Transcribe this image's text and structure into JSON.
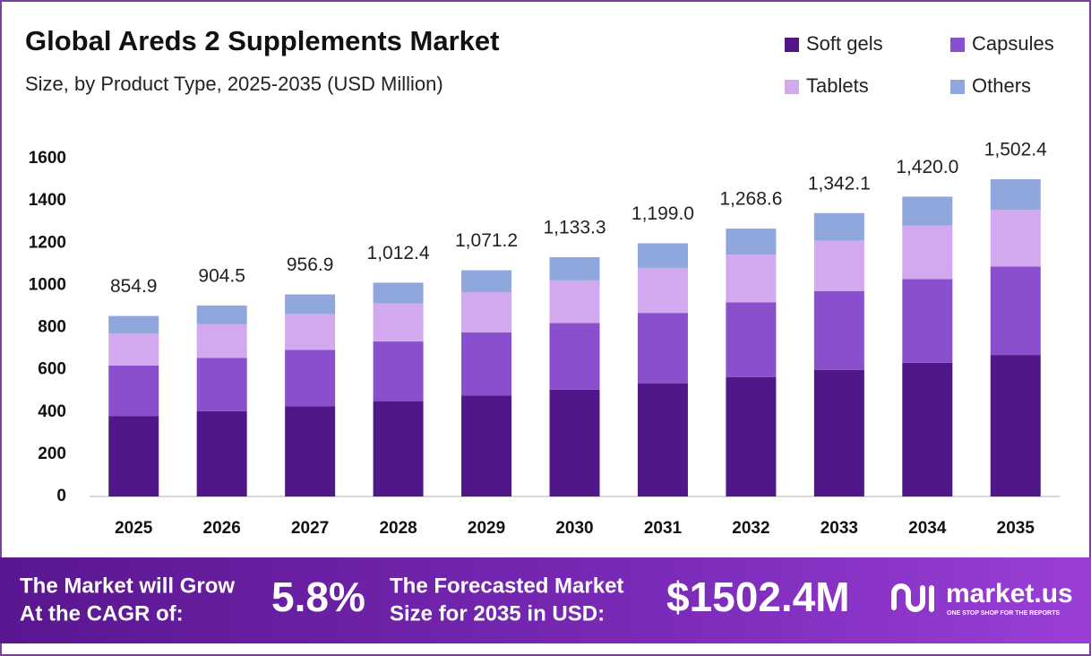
{
  "chart_data": {
    "type": "stacked_bar",
    "title": "Global Areds 2 Supplements Market",
    "subtitle": "Size, by Product Type, 2025-2035 (USD Million)",
    "categories": [
      "2025",
      "2026",
      "2027",
      "2028",
      "2029",
      "2030",
      "2031",
      "2032",
      "2033",
      "2034",
      "2035"
    ],
    "series": [
      {
        "name": "Soft gels",
        "color": "#4f1787",
        "values": [
          381.3,
          403.4,
          426.8,
          451.5,
          477.8,
          505.5,
          534.8,
          565.8,
          598.6,
          633.3,
          670.1
        ]
      },
      {
        "name": "Capsules",
        "color": "#8a4fcc",
        "values": [
          238.5,
          252.4,
          267.0,
          282.5,
          298.9,
          316.2,
          334.5,
          353.9,
          374.4,
          396.2,
          419.2
        ]
      },
      {
        "name": "Tablets",
        "color": "#d2a8ee",
        "values": [
          152.2,
          161.0,
          170.3,
          180.2,
          190.7,
          201.7,
          213.4,
          225.8,
          238.9,
          252.8,
          267.4
        ]
      },
      {
        "name": "Others",
        "color": "#8fa7dc",
        "values": [
          82.9,
          87.7,
          92.8,
          98.2,
          103.8,
          109.9,
          116.3,
          123.1,
          130.2,
          137.7,
          145.7
        ]
      }
    ],
    "total_labels": [
      "854.9",
      "904.5",
      "956.9",
      "1,012.4",
      "1,071.2",
      "1,133.3",
      "1,199.0",
      "1,268.6",
      "1,342.1",
      "1,420.0",
      "1,502.4"
    ],
    "ylim": [
      0,
      1600
    ],
    "yticks": [
      0,
      200,
      400,
      600,
      800,
      1000,
      1200,
      1400,
      1600
    ],
    "grid": false,
    "legend": "top-right"
  },
  "footer": {
    "cagr_text": [
      "The Market will Grow",
      "At the CAGR of:"
    ],
    "cagr_value": "5.8%",
    "forecast_text": [
      "The Forecasted Market",
      "Size for 2035 in USD:"
    ],
    "forecast_value": "$1502.4M",
    "brand": "market.us",
    "tagline": "ONE STOP SHOP FOR THE REPORTS"
  }
}
